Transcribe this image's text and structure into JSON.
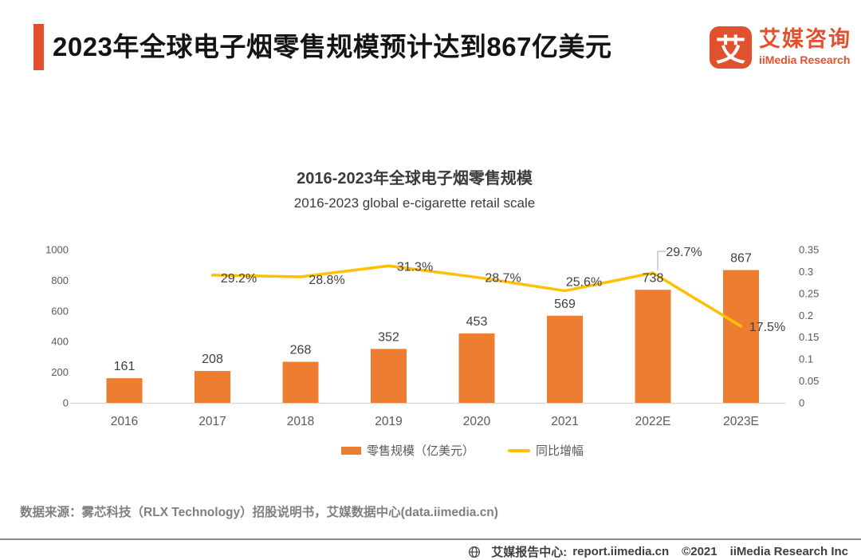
{
  "header": {
    "title": "2023年全球电子烟零售规模预计达到867亿美元",
    "logo": {
      "mark": "艾",
      "name_cn": "艾媒咨询",
      "name_en": "iiMedia Research"
    }
  },
  "chart_data": {
    "type": "bar",
    "title": "2016-2023年全球电子烟零售规模",
    "subtitle": "2016-2023 global e-cigarette retail scale",
    "categories": [
      "2016",
      "2017",
      "2018",
      "2019",
      "2020",
      "2021",
      "2022E",
      "2023E"
    ],
    "series": [
      {
        "name": "零售规模（亿美元）",
        "type": "bar",
        "axis": "left",
        "color": "#ED7D31",
        "values": [
          161,
          208,
          268,
          352,
          453,
          569,
          738,
          867
        ]
      },
      {
        "name": "同比增幅",
        "type": "line",
        "axis": "right",
        "color": "#FFC000",
        "values": [
          null,
          0.292,
          0.288,
          0.313,
          0.287,
          0.256,
          0.297,
          0.175
        ],
        "point_labels": [
          "",
          "29.2%",
          "28.8%",
          "31.3%",
          "28.7%",
          "25.6%",
          "29.7%",
          "17.5%"
        ]
      }
    ],
    "left_axis": {
      "min": 0,
      "max": 1000,
      "ticks": [
        "0",
        "200",
        "400",
        "600",
        "800",
        "1000"
      ]
    },
    "right_axis": {
      "min": 0,
      "max": 0.35,
      "ticks": [
        "0",
        "0.05",
        "0.1",
        "0.15",
        "0.2",
        "0.25",
        "0.3",
        "0.35"
      ]
    },
    "grid": false,
    "legend_position": "bottom",
    "xlabel": "",
    "ylabel": ""
  },
  "legend": {
    "items": [
      {
        "label": "零售规模（亿美元）",
        "swatch": "bar",
        "color": "#ED7D31"
      },
      {
        "label": "同比增幅",
        "swatch": "line",
        "color": "#FFC000"
      }
    ]
  },
  "source": {
    "label": "数据来源：雾芯科技（RLX Technology）招股说明书，艾媒数据中心(data.iimedia.cn)"
  },
  "footer": {
    "site_label": "艾媒报告中心:",
    "site_url": "report.iimedia.cn",
    "copyright": "©2021",
    "company": "iiMedia Research Inc"
  },
  "colors": {
    "brand": "#E2512E",
    "bar": "#ED7D31",
    "line": "#FFC000"
  }
}
